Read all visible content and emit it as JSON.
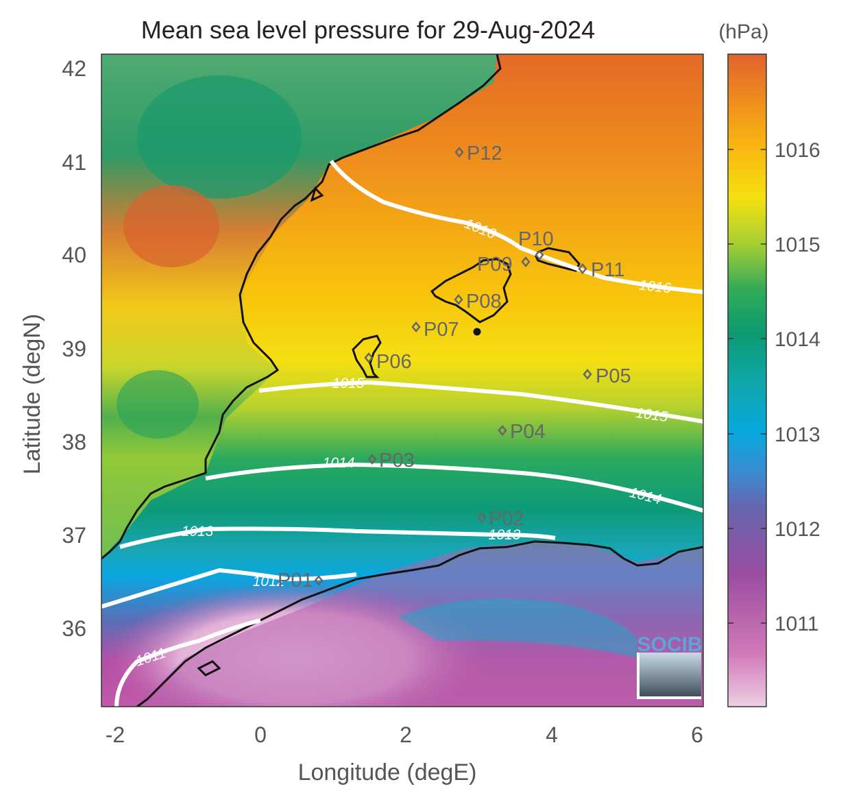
{
  "title": "Mean sea level pressure for 29-Aug-2024",
  "colorbar": {
    "unit": "(hPa)",
    "ticks": [
      "1011",
      "1012",
      "1013",
      "1014",
      "1015",
      "1016"
    ]
  },
  "axes": {
    "xlabel": "Longitude (degE)",
    "ylabel": "Latitude (degN)",
    "xticks": [
      "-2",
      "0",
      "2",
      "4",
      "6"
    ],
    "yticks": [
      "42",
      "41",
      "40",
      "39",
      "38",
      "37",
      "36"
    ]
  },
  "contour_labels": [
    "1016",
    "1016",
    "1015",
    "1015",
    "1014",
    "1014",
    "1013",
    "1013",
    "1012",
    "1011"
  ],
  "points": [
    {
      "name": "P01",
      "label": "P01"
    },
    {
      "name": "P02",
      "label": "P02"
    },
    {
      "name": "P03",
      "label": "P03"
    },
    {
      "name": "P04",
      "label": "P04"
    },
    {
      "name": "P05",
      "label": "P05"
    },
    {
      "name": "P06",
      "label": "P06"
    },
    {
      "name": "P07",
      "label": "P07"
    },
    {
      "name": "P08",
      "label": "P08"
    },
    {
      "name": "P09",
      "label": "P09"
    },
    {
      "name": "P10",
      "label": "P10"
    },
    {
      "name": "P11",
      "label": "P11"
    },
    {
      "name": "P12",
      "label": "P12"
    }
  ],
  "logo": "SOCIB",
  "colors": {
    "high": "#d9642a",
    "mid_high": "#f6c60f",
    "mid": "#0e9a6a",
    "mid_low": "#18a6d9",
    "low": "#8a4b9e",
    "lowest": "#e8c7de",
    "contour": "#ffffff",
    "coast": "#111111"
  }
}
